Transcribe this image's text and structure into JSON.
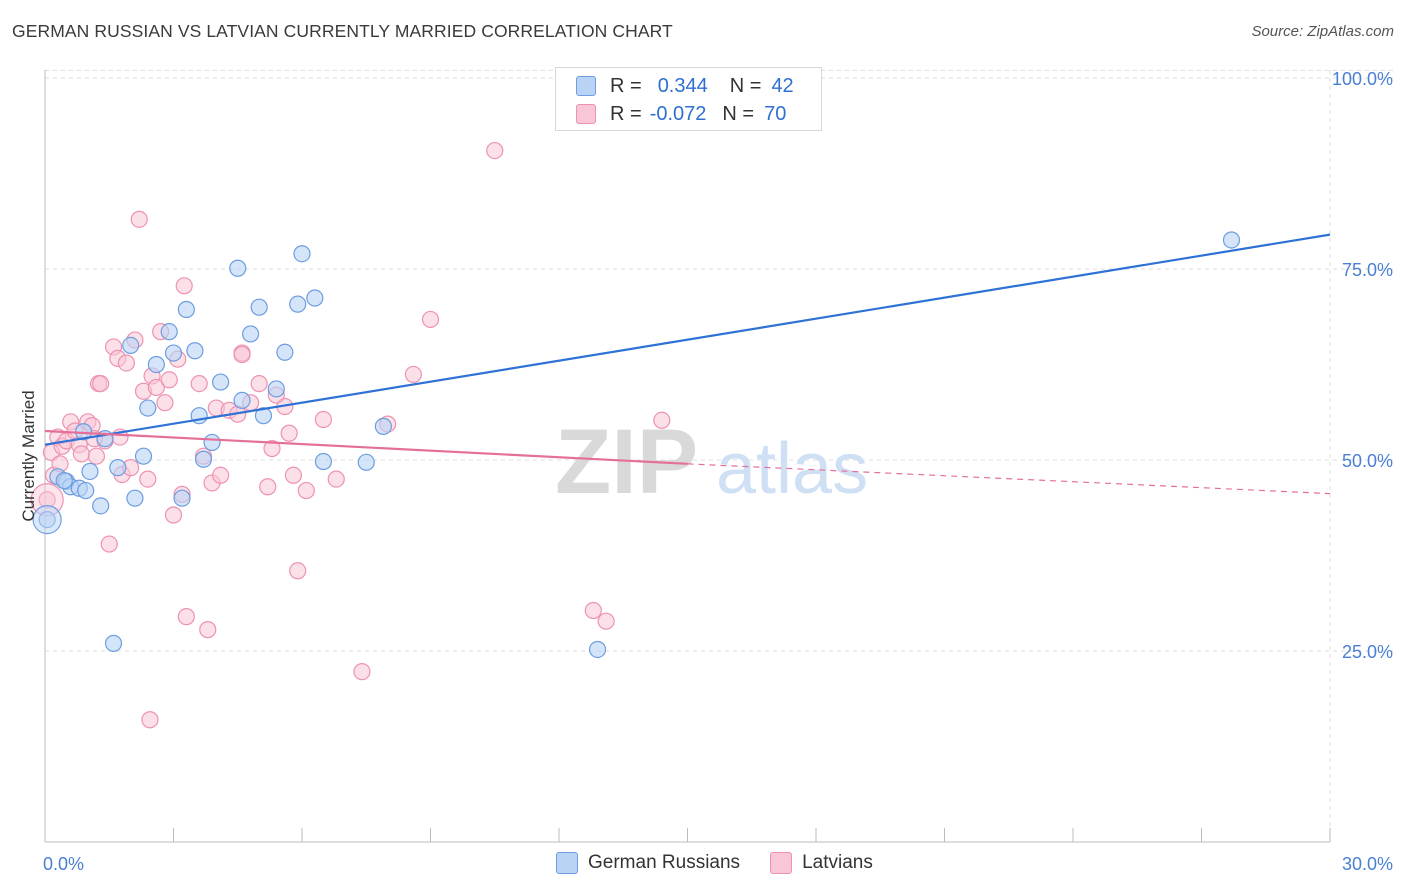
{
  "title": "GERMAN RUSSIAN VS LATVIAN CURRENTLY MARRIED CORRELATION CHART",
  "source": "Source: ZipAtlas.com",
  "watermark": {
    "zip": "ZIP",
    "atlas": "atlas"
  },
  "legend_top": [
    {
      "r_label": "R =",
      "r_value": "0.344",
      "n_label": "N =",
      "n_value": "42"
    },
    {
      "r_label": "R =",
      "r_value": "-0.072",
      "n_label": "N =",
      "n_value": "70"
    }
  ],
  "legend_bottom": [
    "German Russians",
    "Latvians"
  ],
  "colors": {
    "german_fill": "#b9d3f5",
    "german_stroke": "#6d9de0",
    "german_line": "#2f72d6",
    "latvian_fill": "#f8c6d6",
    "latvian_stroke": "#ee92b1",
    "latvian_line": "#e4709a",
    "tick_label": "#4a7fd1",
    "grid": "#dddddd"
  },
  "chart_data": {
    "type": "scatter",
    "title": "GERMAN RUSSIAN VS LATVIAN CURRENTLY MARRIED CORRELATION CHART",
    "xlabel": "",
    "ylabel": "Currently Married",
    "xlim": [
      0,
      30
    ],
    "ylim": [
      0,
      101
    ],
    "x_tick_labels": [
      "0.0%",
      "30.0%"
    ],
    "y_ticks": [
      25,
      50,
      75,
      100
    ],
    "y_tick_labels": [
      "25.0%",
      "50.0%",
      "75.0%",
      "100.0%"
    ],
    "grid": true,
    "legend_position": "top-center",
    "series": [
      {
        "name": "German Russians",
        "r": 0.344,
        "n": 42,
        "trend": {
          "x0": 0,
          "y0": 52.0,
          "x1": 30,
          "y1": 79.5
        },
        "points": [
          [
            0.05,
            42.2
          ],
          [
            0.3,
            47.8
          ],
          [
            0.5,
            47.2
          ],
          [
            0.6,
            46.5
          ],
          [
            0.8,
            46.3
          ],
          [
            0.9,
            53.7
          ],
          [
            1.05,
            48.5
          ],
          [
            1.3,
            44.0
          ],
          [
            1.4,
            52.8
          ],
          [
            1.6,
            26.0
          ],
          [
            2.0,
            65.0
          ],
          [
            2.1,
            45.0
          ],
          [
            2.3,
            50.5
          ],
          [
            2.4,
            56.8
          ],
          [
            2.6,
            62.5
          ],
          [
            2.9,
            66.8
          ],
          [
            3.0,
            64.0
          ],
          [
            3.2,
            45.0
          ],
          [
            3.3,
            69.7
          ],
          [
            3.5,
            64.3
          ],
          [
            3.6,
            55.8
          ],
          [
            3.7,
            50.1
          ],
          [
            3.9,
            52.3
          ],
          [
            4.1,
            60.2
          ],
          [
            4.5,
            75.1
          ],
          [
            4.6,
            57.8
          ],
          [
            4.8,
            66.5
          ],
          [
            5.0,
            70.0
          ],
          [
            5.1,
            55.8
          ],
          [
            5.4,
            59.3
          ],
          [
            5.6,
            64.1
          ],
          [
            5.9,
            70.4
          ],
          [
            6.0,
            77.0
          ],
          [
            6.3,
            71.2
          ],
          [
            6.5,
            49.8
          ],
          [
            7.5,
            49.7
          ],
          [
            7.9,
            54.4
          ],
          [
            12.9,
            25.2
          ],
          [
            27.7,
            78.8
          ],
          [
            0.45,
            47.3
          ],
          [
            0.95,
            46.0
          ],
          [
            1.7,
            49.0
          ]
        ]
      },
      {
        "name": "Latvians",
        "r": -0.072,
        "n": 70,
        "trend": {
          "x0": 0,
          "y0": 53.8,
          "x1": 15,
          "y1": 49.5,
          "dash_x1": 30,
          "dash_y1": 45.6
        },
        "points": [
          [
            0.05,
            44.8
          ],
          [
            0.15,
            51.0
          ],
          [
            0.2,
            48.0
          ],
          [
            0.3,
            53.0
          ],
          [
            0.4,
            51.8
          ],
          [
            0.5,
            52.5
          ],
          [
            0.6,
            55.0
          ],
          [
            0.7,
            53.8
          ],
          [
            0.8,
            52.0
          ],
          [
            0.85,
            50.8
          ],
          [
            1.0,
            55.0
          ],
          [
            1.1,
            54.5
          ],
          [
            1.2,
            50.5
          ],
          [
            1.25,
            60.0
          ],
          [
            1.3,
            60.0
          ],
          [
            1.4,
            52.5
          ],
          [
            1.5,
            39.0
          ],
          [
            1.6,
            64.8
          ],
          [
            1.7,
            63.3
          ],
          [
            1.75,
            53.0
          ],
          [
            1.8,
            48.1
          ],
          [
            1.9,
            62.7
          ],
          [
            2.0,
            49.0
          ],
          [
            2.1,
            65.7
          ],
          [
            2.2,
            81.5
          ],
          [
            2.3,
            59.0
          ],
          [
            2.4,
            47.5
          ],
          [
            2.45,
            16.0
          ],
          [
            2.5,
            61.0
          ],
          [
            2.6,
            59.5
          ],
          [
            2.8,
            57.5
          ],
          [
            2.9,
            60.5
          ],
          [
            3.0,
            42.8
          ],
          [
            3.1,
            63.2
          ],
          [
            3.2,
            45.5
          ],
          [
            3.25,
            72.8
          ],
          [
            3.3,
            29.5
          ],
          [
            3.6,
            60.0
          ],
          [
            3.8,
            27.8
          ],
          [
            3.9,
            47.0
          ],
          [
            4.0,
            56.8
          ],
          [
            4.1,
            48.0
          ],
          [
            4.3,
            56.5
          ],
          [
            4.5,
            56.0
          ],
          [
            4.6,
            64.0
          ],
          [
            4.8,
            57.5
          ],
          [
            5.0,
            60.0
          ],
          [
            5.2,
            46.5
          ],
          [
            5.3,
            51.5
          ],
          [
            5.6,
            57.0
          ],
          [
            5.7,
            53.5
          ],
          [
            5.8,
            48.0
          ],
          [
            5.9,
            35.5
          ],
          [
            6.1,
            46.0
          ],
          [
            6.5,
            55.3
          ],
          [
            7.4,
            22.3
          ],
          [
            8.0,
            54.7
          ],
          [
            8.6,
            61.2
          ],
          [
            9.0,
            68.4
          ],
          [
            10.5,
            90.5
          ],
          [
            12.8,
            30.3
          ],
          [
            13.1,
            28.9
          ],
          [
            14.4,
            55.2
          ],
          [
            0.35,
            49.5
          ],
          [
            1.15,
            52.8
          ],
          [
            2.7,
            66.8
          ],
          [
            3.7,
            50.5
          ],
          [
            4.6,
            63.8
          ],
          [
            5.4,
            58.5
          ],
          [
            6.8,
            47.5
          ]
        ]
      }
    ]
  }
}
